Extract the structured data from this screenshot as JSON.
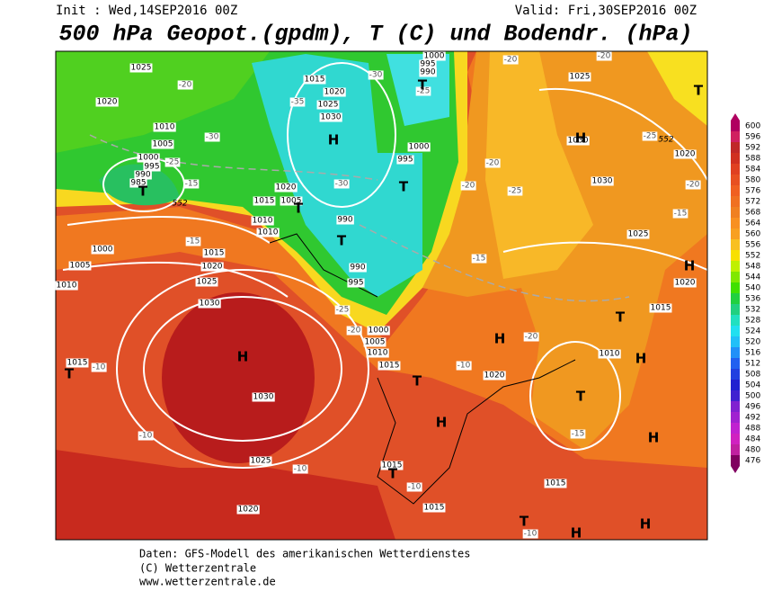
{
  "header": {
    "init": "Init : Wed,14SEP2016 00Z",
    "valid": "Valid: Fri,30SEP2016 00Z",
    "title": "500 hPa Geopot.(gpdm), T (C) und Bodendr. (hPa)"
  },
  "footer": {
    "line1": "Daten: GFS-Modell des amerikanischen Wetterdienstes",
    "line2": "(C) Wetterzentrale",
    "line3": "www.wetterzentrale.de"
  },
  "colorbar": {
    "levels": [
      600,
      596,
      592,
      588,
      584,
      580,
      576,
      572,
      568,
      564,
      560,
      556,
      552,
      548,
      544,
      540,
      536,
      532,
      528,
      524,
      520,
      516,
      512,
      508,
      504,
      500,
      496,
      492,
      488,
      484,
      480,
      476
    ],
    "colors": [
      "#b00060",
      "#d02060",
      "#c02828",
      "#d03020",
      "#e04020",
      "#e85020",
      "#f06020",
      "#f07020",
      "#f08020",
      "#f89020",
      "#f8a020",
      "#f8c020",
      "#f8e000",
      "#c0f000",
      "#80e800",
      "#40e000",
      "#20d040",
      "#20d080",
      "#20e0c0",
      "#20e0f0",
      "#20c0f8",
      "#2090f8",
      "#2060f0",
      "#2040e0",
      "#2020d0",
      "#4020d0",
      "#8020d0",
      "#a020d0",
      "#c020d0",
      "#d020c0",
      "#c020a0",
      "#800060"
    ]
  },
  "map_labels": {
    "pressure": [
      "1025",
      "1020",
      "1010",
      "1005",
      "1000",
      "995",
      "990",
      "985",
      "1015",
      "1020",
      "1025",
      "1030",
      "1000",
      "995",
      "990",
      "1000",
      "995",
      "1020",
      "1015",
      "1005",
      "1010",
      "1010",
      "990",
      "990",
      "995",
      "1000",
      "1005",
      "1010",
      "1015",
      "1020",
      "1025",
      "1030",
      "1030",
      "1025",
      "1020",
      "1015",
      "1000",
      "1005",
      "1010",
      "1015",
      "1020",
      "1015",
      "1015",
      "1015",
      "1010",
      "1015",
      "1020",
      "1025",
      "1030",
      "1030",
      "1025",
      "1020"
    ],
    "temperature": [
      "-20",
      "-30",
      "-25",
      "-15",
      "-15",
      "-30",
      "-35",
      "-25",
      "-30",
      "-25",
      "-20",
      "-15",
      "-20",
      "-25",
      "-20",
      "-20",
      "-20",
      "-25",
      "-15",
      "-20",
      "-20",
      "-15",
      "-10",
      "-10",
      "-10",
      "-10",
      "-10",
      "-10"
    ],
    "geopotential": [
      "552",
      "552"
    ],
    "centers": [
      "H",
      "T",
      "T",
      "T",
      "T",
      "T",
      "H",
      "T",
      "H",
      "T",
      "H",
      "T",
      "H",
      "T",
      "H",
      "H",
      "T",
      "H",
      "T",
      "H",
      "H",
      "T"
    ]
  }
}
